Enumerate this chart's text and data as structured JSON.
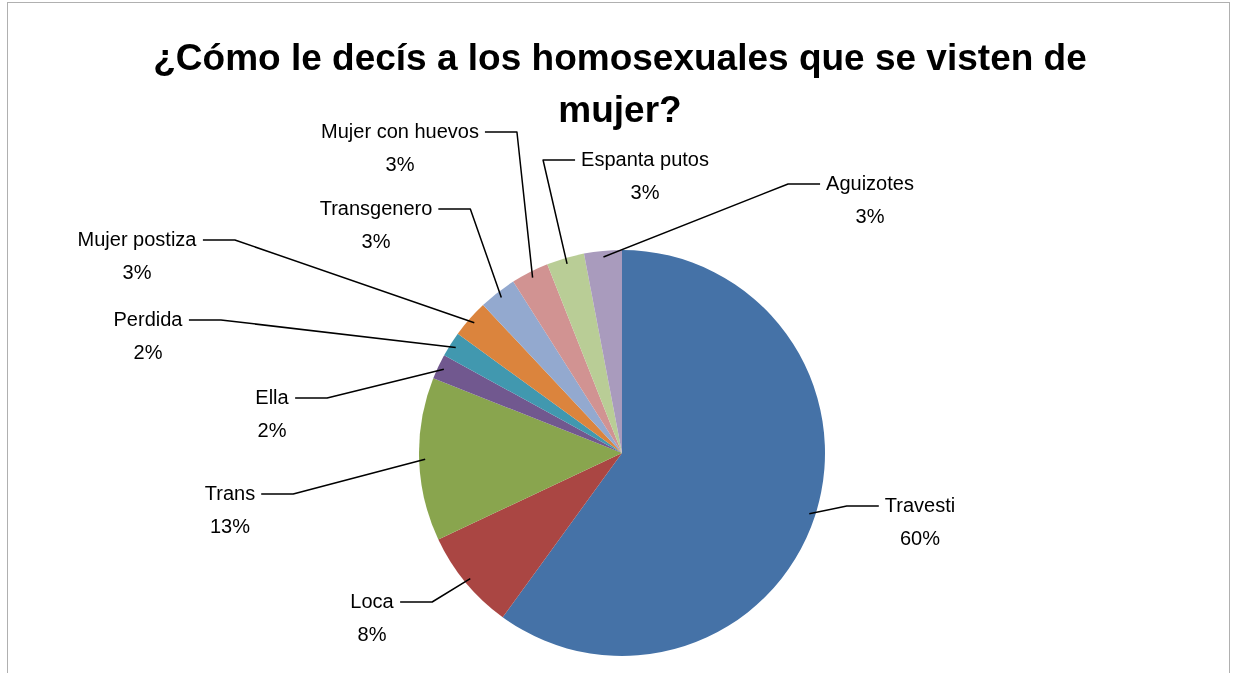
{
  "chart_data": {
    "type": "pie",
    "title": "¿Cómo le decís a los homosexuales que se visten de mujer?",
    "categories": [
      "Travesti",
      "Loca",
      "Trans",
      "Ella",
      "Perdida",
      "Mujer postiza",
      "Transgenero",
      "Mujer con huevos",
      "Espanta putos",
      "Aguizotes"
    ],
    "values": [
      60,
      8,
      13,
      2,
      2,
      3,
      3,
      3,
      3,
      3
    ],
    "value_labels": [
      "60%",
      "8%",
      "13%",
      "2%",
      "2%",
      "3%",
      "3%",
      "3%",
      "3%",
      "3%"
    ],
    "colors": [
      "#4572a7",
      "#aa4643",
      "#89a54e",
      "#71588f",
      "#4198af",
      "#db843d",
      "#93a9cf",
      "#d19392",
      "#b9cd96",
      "#a99bbd"
    ]
  }
}
